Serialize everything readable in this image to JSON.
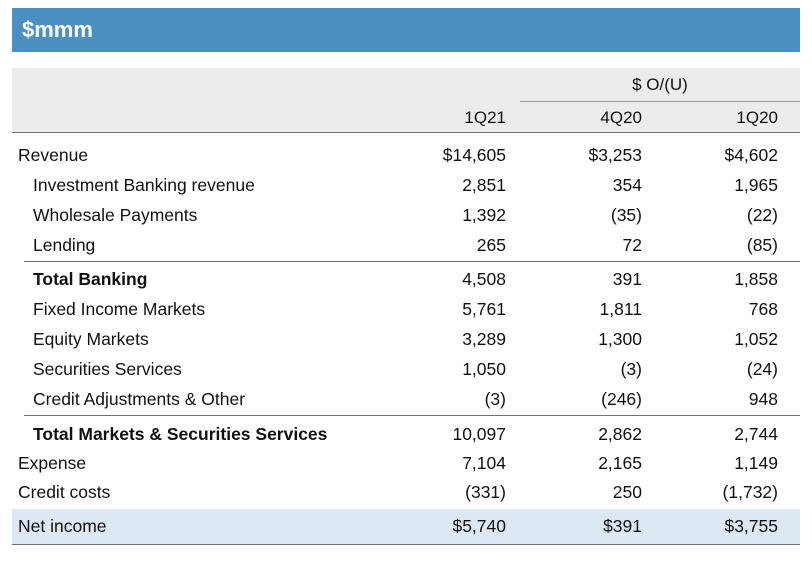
{
  "title": "$mmm",
  "header": {
    "group_label": "$ O/(U)",
    "columns": [
      "1Q21",
      "4Q20",
      "1Q20"
    ]
  },
  "rows": [
    {
      "label": "Revenue",
      "values": [
        "$14,605",
        "$3,253",
        "$4,602"
      ],
      "style": "normal"
    },
    {
      "label": "Investment Banking revenue",
      "values": [
        "2,851",
        "354",
        "1,965"
      ],
      "style": "indent"
    },
    {
      "label": "Wholesale Payments",
      "values": [
        "1,392",
        "(35)",
        "(22)"
      ],
      "style": "indent"
    },
    {
      "label": "Lending",
      "values": [
        "265",
        "72",
        "(85)"
      ],
      "style": "indent"
    },
    {
      "label": "Total Banking",
      "values": [
        "4,508",
        "391",
        "1,858"
      ],
      "style": "indent-bold"
    },
    {
      "label": "Fixed Income Markets",
      "values": [
        "5,761",
        "1,811",
        "768"
      ],
      "style": "indent"
    },
    {
      "label": "Equity Markets",
      "values": [
        "3,289",
        "1,300",
        "1,052"
      ],
      "style": "indent"
    },
    {
      "label": "Securities Services",
      "values": [
        "1,050",
        "(3)",
        "(24)"
      ],
      "style": "indent"
    },
    {
      "label": "Credit Adjustments & Other",
      "values": [
        "(3)",
        "(246)",
        "948"
      ],
      "style": "indent"
    },
    {
      "label": "Total Markets & Securities Services",
      "values": [
        "10,097",
        "2,862",
        "2,744"
      ],
      "style": "indent-bold"
    },
    {
      "label": "Expense",
      "values": [
        "7,104",
        "2,165",
        "1,149"
      ],
      "style": "normal"
    },
    {
      "label": "Credit costs",
      "values": [
        "(331)",
        "250",
        "(1,732)"
      ],
      "style": "normal"
    },
    {
      "label": "Net income",
      "values": [
        "$5,740",
        "$391",
        "$3,755"
      ],
      "style": "highlight"
    }
  ],
  "colors": {
    "banner": "#4a90c2",
    "header_band": "#ececec",
    "net_income_band": "#dde8f4",
    "rule": "#6f6f6f"
  }
}
